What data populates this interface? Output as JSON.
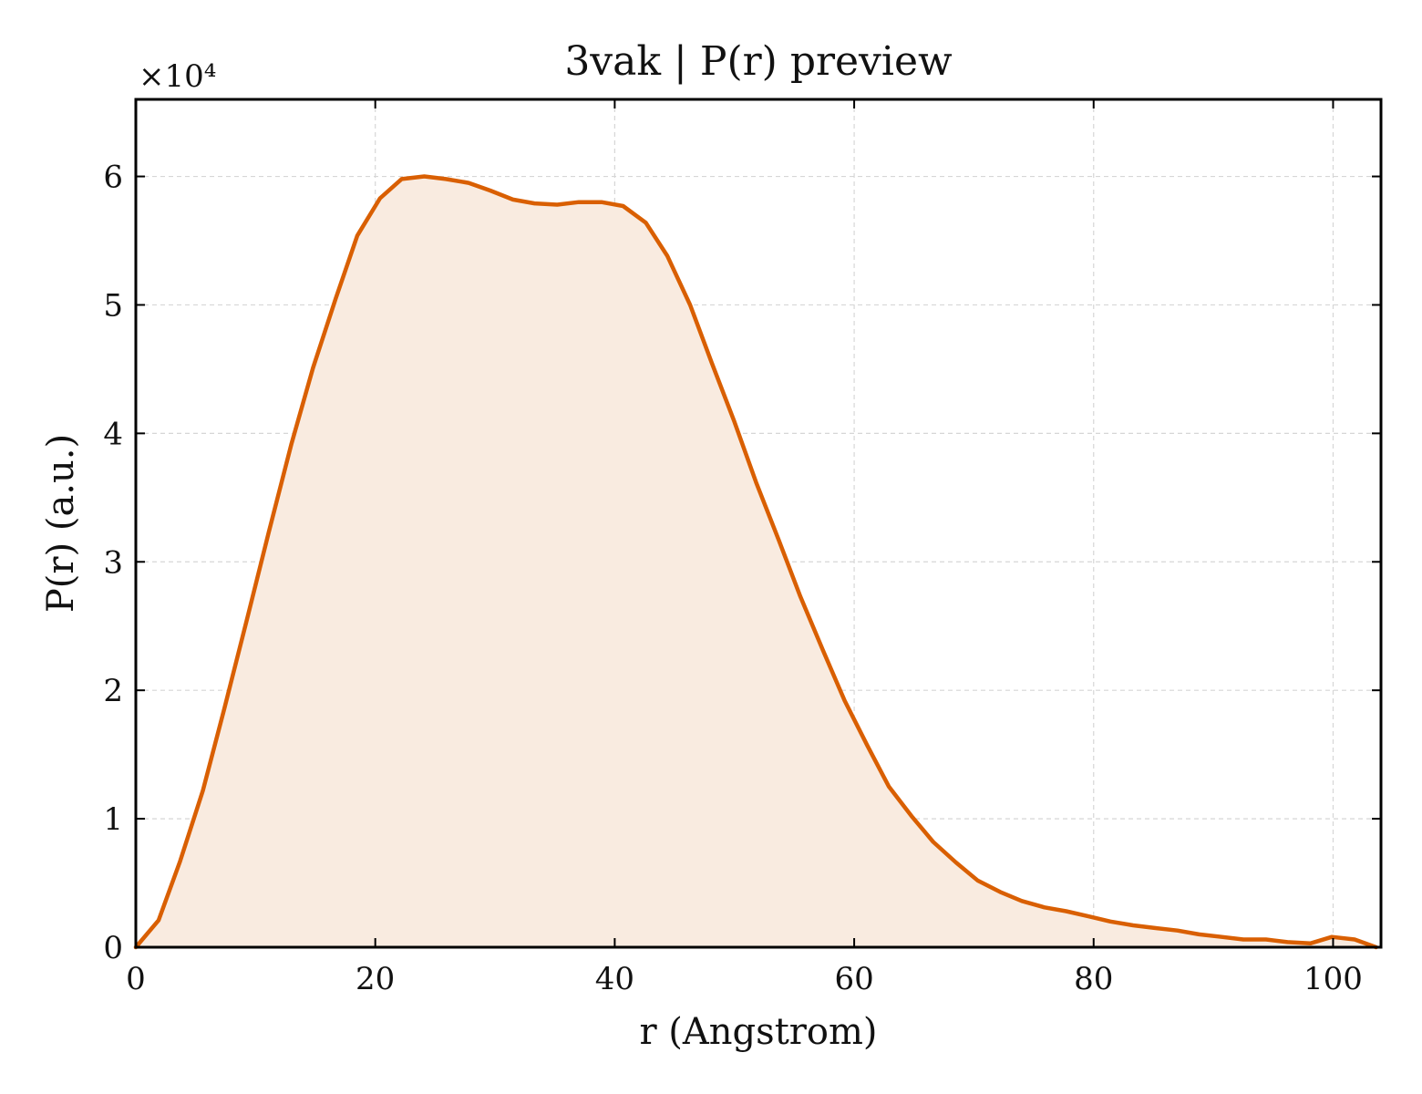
{
  "chart_data": {
    "type": "area",
    "title": "3vak | P(r) preview",
    "xlabel": "r (Angstrom)",
    "ylabel": "P(r) (a.u.)",
    "y_multiplier_label": "×10⁴",
    "xlim": [
      0,
      104
    ],
    "ylim": [
      0,
      6.6
    ],
    "x_ticks": [
      0,
      20,
      40,
      60,
      80,
      100
    ],
    "y_ticks": [
      0,
      1,
      2,
      3,
      4,
      5,
      6
    ],
    "x_tick_labels": [
      "0",
      "20",
      "40",
      "60",
      "80",
      "100"
    ],
    "y_tick_labels": [
      "0",
      "1",
      "2",
      "3",
      "4",
      "5",
      "6"
    ],
    "grid": true,
    "colors": {
      "line": "#d95f02",
      "fill": "#f9ebe0",
      "grid": "#d6d6d6",
      "axes": "#000000"
    },
    "series": [
      {
        "x": [
          0,
          1.9,
          3.7,
          5.6,
          7.4,
          9.3,
          11.1,
          13.0,
          14.8,
          16.7,
          18.5,
          20.4,
          22.2,
          24.1,
          25.9,
          27.8,
          29.6,
          31.5,
          33.3,
          35.2,
          37.0,
          38.9,
          40.7,
          42.6,
          44.4,
          46.3,
          48.1,
          50.0,
          51.8,
          53.7,
          55.5,
          57.4,
          59.2,
          61.1,
          62.9,
          64.8,
          66.6,
          68.5,
          70.3,
          72.2,
          74.0,
          75.9,
          77.7,
          79.6,
          81.4,
          83.3,
          85.1,
          87.0,
          88.8,
          90.7,
          92.5,
          94.4,
          96.2,
          98.1,
          99.9,
          101.8,
          103.6
        ],
        "values": [
          0,
          0.21,
          0.67,
          1.22,
          1.86,
          2.56,
          3.23,
          3.92,
          4.51,
          5.05,
          5.54,
          5.83,
          5.98,
          6.0,
          5.98,
          5.95,
          5.89,
          5.82,
          5.79,
          5.78,
          5.8,
          5.8,
          5.77,
          5.64,
          5.38,
          5.0,
          4.55,
          4.09,
          3.62,
          3.17,
          2.73,
          2.31,
          1.92,
          1.57,
          1.25,
          1.02,
          0.82,
          0.66,
          0.52,
          0.43,
          0.36,
          0.31,
          0.28,
          0.24,
          0.2,
          0.17,
          0.15,
          0.13,
          0.1,
          0.08,
          0.06,
          0.06,
          0.04,
          0.03,
          0.08,
          0.06,
          0
        ]
      }
    ]
  }
}
